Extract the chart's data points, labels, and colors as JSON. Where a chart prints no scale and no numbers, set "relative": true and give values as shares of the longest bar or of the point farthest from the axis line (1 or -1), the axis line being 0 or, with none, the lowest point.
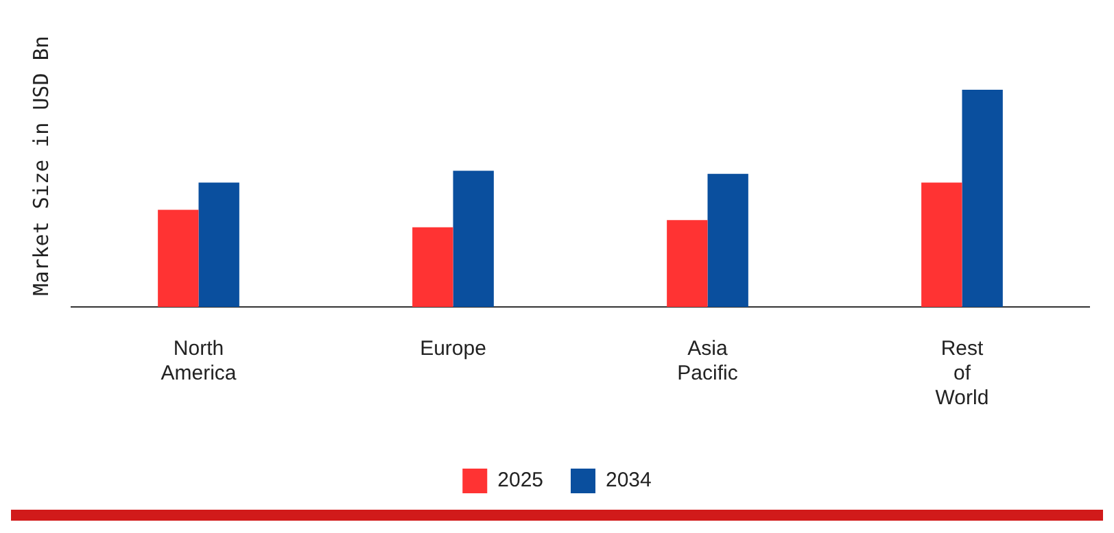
{
  "chart_data": {
    "type": "bar",
    "relative": true,
    "ylabel": "Market Size in USD Bn",
    "categories": [
      "North America",
      "Europe",
      "Asia Pacific",
      "Rest of World"
    ],
    "series": [
      {
        "name": "2025",
        "color": "#ff3333",
        "values": [
          0.447,
          0.367,
          0.4,
          0.573
        ]
      },
      {
        "name": "2034",
        "color": "#0a4f9e",
        "values": [
          0.573,
          0.627,
          0.613,
          1
        ]
      }
    ],
    "legend": "bottom",
    "grid": false
  }
}
